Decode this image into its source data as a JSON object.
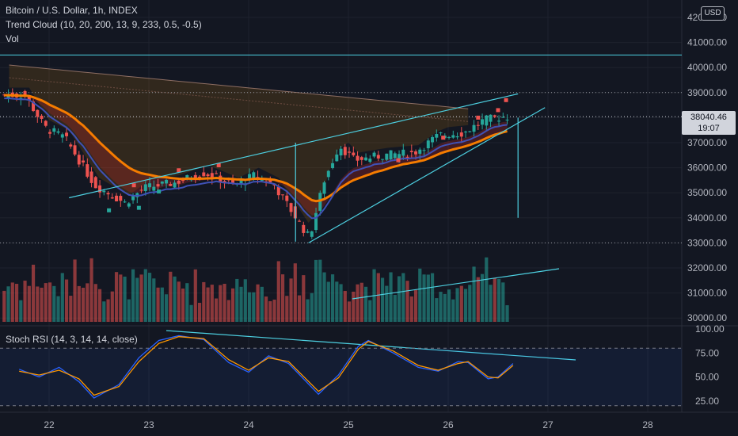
{
  "header": {
    "symbol": "Bitcoin / U.S. Dollar, 1h, INDEX",
    "indicator": "Trend Cloud (10, 20, 200, 13, 9, 233, 0.5, -0.5)",
    "volume_label": "Vol",
    "currency": "USD"
  },
  "last_price": {
    "value": "38040.46",
    "countdown": "19:07"
  },
  "oscillator": {
    "label": "Stoch RSI (14, 3, 14, 14, close)"
  },
  "colors": {
    "background": "#131722",
    "up": "#26a69a",
    "down": "#ef5350",
    "trendline": "#4dd0e1",
    "ema_fast": "#f57c00",
    "stoch_k": "#2962ff",
    "stoch_d": "#ff9800"
  },
  "chart_data": [
    {
      "type": "candlestick",
      "timeframe": "1h",
      "x_ticks": [
        "22",
        "23",
        "24",
        "25",
        "26",
        "27",
        "28"
      ],
      "y_ticks": [
        30000,
        31000,
        32000,
        33000,
        34000,
        35000,
        36000,
        37000,
        38000,
        39000,
        40000,
        41000,
        42000
      ],
      "ylim": [
        29900,
        42300
      ],
      "horizontal_levels": [
        40500,
        39000,
        33000
      ],
      "last_price": 38040.46,
      "approx_close_path": [
        {
          "day": 21.8,
          "price": 38900
        },
        {
          "day": 22.0,
          "price": 37600
        },
        {
          "day": 22.2,
          "price": 37200
        },
        {
          "day": 22.5,
          "price": 35300
        },
        {
          "day": 22.8,
          "price": 34600
        },
        {
          "day": 23.0,
          "price": 35200
        },
        {
          "day": 23.3,
          "price": 35400
        },
        {
          "day": 23.6,
          "price": 35800
        },
        {
          "day": 23.9,
          "price": 35300
        },
        {
          "day": 24.1,
          "price": 35700
        },
        {
          "day": 24.3,
          "price": 35300
        },
        {
          "day": 24.5,
          "price": 34100
        },
        {
          "day": 24.65,
          "price": 33200
        },
        {
          "day": 24.8,
          "price": 35500
        },
        {
          "day": 24.95,
          "price": 36900
        },
        {
          "day": 25.1,
          "price": 36300
        },
        {
          "day": 25.4,
          "price": 36500
        },
        {
          "day": 25.7,
          "price": 36600
        },
        {
          "day": 25.95,
          "price": 37300
        },
        {
          "day": 26.2,
          "price": 37400
        },
        {
          "day": 26.4,
          "price": 37900
        },
        {
          "day": 26.6,
          "price": 38040
        }
      ]
    },
    {
      "type": "line",
      "name": "Stoch RSI",
      "y_ticks": [
        25,
        50,
        75,
        100
      ],
      "ylim": [
        15,
        100
      ],
      "bands": [
        20,
        80
      ],
      "series": [
        {
          "name": "K",
          "points": [
            {
              "day": 21.7,
              "value": 58
            },
            {
              "day": 21.9,
              "value": 50
            },
            {
              "day": 22.1,
              "value": 60
            },
            {
              "day": 22.3,
              "value": 45
            },
            {
              "day": 22.45,
              "value": 28
            },
            {
              "day": 22.7,
              "value": 42
            },
            {
              "day": 22.9,
              "value": 70
            },
            {
              "day": 23.1,
              "value": 88
            },
            {
              "day": 23.3,
              "value": 93
            },
            {
              "day": 23.55,
              "value": 89
            },
            {
              "day": 23.8,
              "value": 65
            },
            {
              "day": 24.0,
              "value": 55
            },
            {
              "day": 24.2,
              "value": 72
            },
            {
              "day": 24.4,
              "value": 64
            },
            {
              "day": 24.7,
              "value": 32
            },
            {
              "day": 24.9,
              "value": 52
            },
            {
              "day": 25.1,
              "value": 82
            },
            {
              "day": 25.2,
              "value": 88
            },
            {
              "day": 25.45,
              "value": 75
            },
            {
              "day": 25.7,
              "value": 60
            },
            {
              "day": 25.9,
              "value": 56
            },
            {
              "day": 26.1,
              "value": 66
            },
            {
              "day": 26.2,
              "value": 65
            },
            {
              "day": 26.4,
              "value": 48
            },
            {
              "day": 26.5,
              "value": 50
            },
            {
              "day": 26.65,
              "value": 64
            }
          ]
        },
        {
          "name": "D",
          "points": [
            {
              "day": 21.7,
              "value": 56
            },
            {
              "day": 21.9,
              "value": 52
            },
            {
              "day": 22.1,
              "value": 57
            },
            {
              "day": 22.3,
              "value": 48
            },
            {
              "day": 22.45,
              "value": 31
            },
            {
              "day": 22.7,
              "value": 40
            },
            {
              "day": 22.9,
              "value": 66
            },
            {
              "day": 23.1,
              "value": 85
            },
            {
              "day": 23.3,
              "value": 92
            },
            {
              "day": 23.55,
              "value": 90
            },
            {
              "day": 23.8,
              "value": 68
            },
            {
              "day": 24.0,
              "value": 57
            },
            {
              "day": 24.2,
              "value": 70
            },
            {
              "day": 24.4,
              "value": 66
            },
            {
              "day": 24.7,
              "value": 35
            },
            {
              "day": 24.9,
              "value": 49
            },
            {
              "day": 25.1,
              "value": 79
            },
            {
              "day": 25.2,
              "value": 87
            },
            {
              "day": 25.45,
              "value": 77
            },
            {
              "day": 25.7,
              "value": 62
            },
            {
              "day": 25.9,
              "value": 57
            },
            {
              "day": 26.1,
              "value": 64
            },
            {
              "day": 26.2,
              "value": 66
            },
            {
              "day": 26.4,
              "value": 50
            },
            {
              "day": 26.5,
              "value": 49
            },
            {
              "day": 26.65,
              "value": 62
            }
          ]
        }
      ]
    }
  ]
}
